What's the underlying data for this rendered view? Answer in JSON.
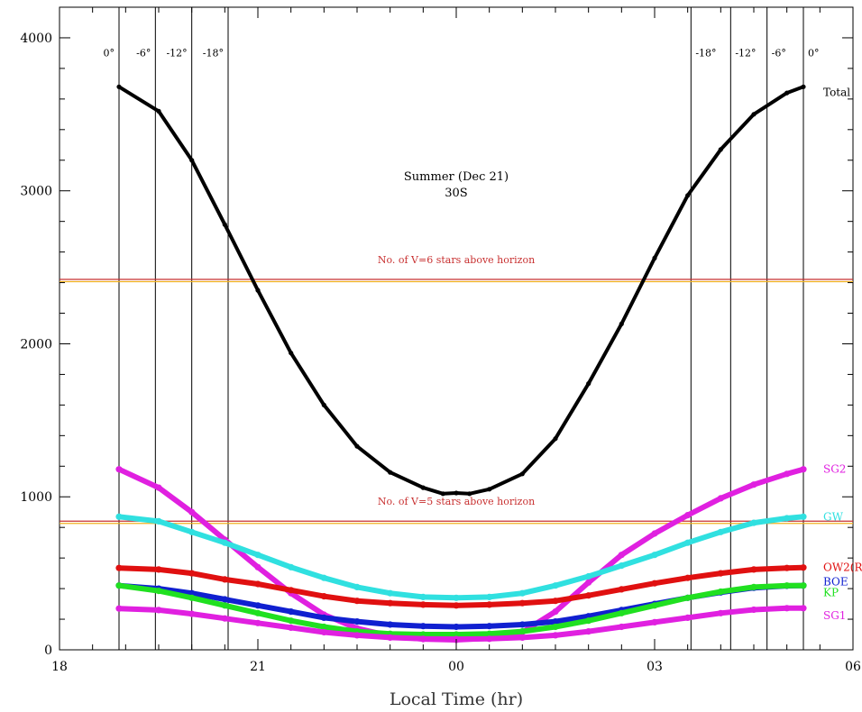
{
  "chart_data": {
    "type": "scatter",
    "title": "Summer (Dec 21)",
    "subtitle": "30S",
    "xlabel": "Local Time (hr)",
    "ylabel": "",
    "xlim": [
      18,
      30
    ],
    "ylim": [
      0,
      4200
    ],
    "x_ticks": [
      {
        "value": 18,
        "label": "18"
      },
      {
        "value": 21,
        "label": "21"
      },
      {
        "value": 24,
        "label": "00"
      },
      {
        "value": 27,
        "label": "03"
      },
      {
        "value": 30,
        "label": "06"
      }
    ],
    "y_ticks": [
      {
        "value": 0,
        "label": "0"
      },
      {
        "value": 1000,
        "label": "1000"
      },
      {
        "value": 2000,
        "label": "2000"
      },
      {
        "value": 3000,
        "label": "3000"
      },
      {
        "value": 4000,
        "label": "4000"
      }
    ],
    "twilight_lines": [
      {
        "x": 18.9,
        "label": "0°"
      },
      {
        "x": 19.45,
        "label": "-6°"
      },
      {
        "x": 20.0,
        "label": "-12°"
      },
      {
        "x": 20.55,
        "label": "-18°"
      },
      {
        "x": 27.55,
        "label": "-18°"
      },
      {
        "x": 28.15,
        "label": "-12°"
      },
      {
        "x": 28.7,
        "label": "-6°"
      },
      {
        "x": 29.25,
        "label": "0°"
      }
    ],
    "reference_lines": [
      {
        "y": 2415,
        "label": "No. of V=6 stars above horizon",
        "color": "#c83030",
        "color2": "#f0b020"
      },
      {
        "y": 835,
        "label": "No. of V=5 stars above horizon",
        "color": "#c83030",
        "color2": "#f0b020"
      }
    ],
    "series": [
      {
        "name": "Total",
        "color": "#000000",
        "x": [
          18.9,
          19.5,
          20.0,
          20.5,
          21.0,
          21.5,
          22.0,
          22.5,
          23.0,
          23.5,
          23.8,
          24.0,
          24.2,
          24.5,
          25.0,
          25.5,
          26.0,
          26.5,
          27.0,
          27.5,
          28.0,
          28.5,
          29.0,
          29.25
        ],
        "y": [
          3680,
          3520,
          3200,
          2780,
          2350,
          1940,
          1600,
          1330,
          1160,
          1060,
          1020,
          1025,
          1020,
          1050,
          1150,
          1380,
          1740,
          2130,
          2560,
          2970,
          3270,
          3500,
          3640,
          3680
        ]
      },
      {
        "name": "SG2",
        "color": "#e020e0",
        "x": [
          18.9,
          19.5,
          20.0,
          20.5,
          21.0,
          21.5,
          22.0,
          22.5,
          23.0,
          23.5,
          24.0,
          24.5,
          25.0,
          25.5,
          26.0,
          26.5,
          27.0,
          27.5,
          28.0,
          28.5,
          29.0,
          29.25
        ],
        "y": [
          1180,
          1060,
          900,
          720,
          540,
          370,
          230,
          140,
          90,
          70,
          65,
          75,
          115,
          250,
          440,
          620,
          760,
          880,
          990,
          1080,
          1150,
          1180
        ]
      },
      {
        "name": "GW",
        "color": "#30e0e0",
        "x": [
          18.9,
          19.5,
          20.0,
          20.5,
          21.0,
          21.5,
          22.0,
          22.5,
          23.0,
          23.5,
          24.0,
          24.5,
          25.0,
          25.5,
          26.0,
          26.5,
          27.0,
          27.5,
          28.0,
          28.5,
          29.0,
          29.25
        ],
        "y": [
          870,
          840,
          770,
          700,
          620,
          540,
          470,
          410,
          370,
          345,
          340,
          345,
          370,
          420,
          480,
          550,
          620,
          700,
          770,
          830,
          860,
          870
        ]
      },
      {
        "name": "OW2(R)",
        "color": "#e01010",
        "x": [
          18.9,
          19.5,
          20.0,
          20.5,
          21.0,
          21.5,
          22.0,
          22.5,
          23.0,
          23.5,
          24.0,
          24.5,
          25.0,
          25.5,
          26.0,
          26.5,
          27.0,
          27.5,
          28.0,
          28.5,
          29.0,
          29.25
        ],
        "y": [
          535,
          525,
          500,
          460,
          430,
          390,
          350,
          320,
          305,
          295,
          290,
          295,
          305,
          320,
          355,
          395,
          435,
          470,
          500,
          525,
          535,
          538
        ]
      },
      {
        "name": "BOE",
        "color": "#1020d0",
        "x": [
          18.9,
          19.5,
          20.0,
          20.5,
          21.0,
          21.5,
          22.0,
          22.5,
          23.0,
          23.5,
          24.0,
          24.5,
          25.0,
          25.5,
          26.0,
          26.5,
          27.0,
          27.5,
          28.0,
          28.5,
          29.0,
          29.25
        ],
        "y": [
          420,
          400,
          370,
          330,
          290,
          250,
          210,
          185,
          165,
          155,
          150,
          155,
          165,
          185,
          220,
          260,
          300,
          340,
          375,
          405,
          418,
          420
        ]
      },
      {
        "name": "KP",
        "color": "#20e020",
        "x": [
          18.9,
          19.5,
          20.0,
          20.5,
          21.0,
          21.5,
          22.0,
          22.5,
          23.0,
          23.5,
          24.0,
          24.5,
          25.0,
          25.5,
          26.0,
          26.5,
          27.0,
          27.5,
          28.0,
          28.5,
          29.0,
          29.25
        ],
        "y": [
          420,
          385,
          340,
          290,
          240,
          190,
          150,
          120,
          105,
          100,
          100,
          105,
          120,
          150,
          190,
          240,
          290,
          340,
          380,
          410,
          420,
          420
        ]
      },
      {
        "name": "SG1",
        "color": "#e020e0",
        "x": [
          18.9,
          19.5,
          20.0,
          20.5,
          21.0,
          21.5,
          22.0,
          22.5,
          23.0,
          23.5,
          24.0,
          24.5,
          25.0,
          25.5,
          26.0,
          26.5,
          27.0,
          27.5,
          28.0,
          28.5,
          29.0,
          29.25
        ],
        "y": [
          270,
          260,
          235,
          205,
          175,
          145,
          115,
          95,
          80,
          72,
          70,
          72,
          80,
          95,
          120,
          150,
          180,
          210,
          240,
          262,
          272,
          272
        ]
      }
    ]
  }
}
